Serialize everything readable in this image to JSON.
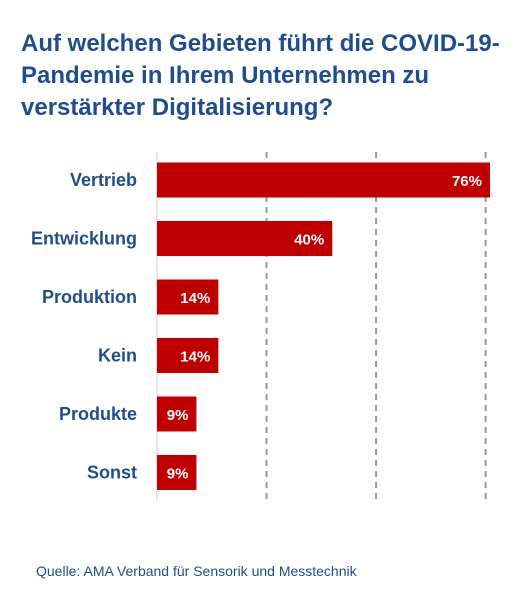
{
  "title": "Auf welchen Gebieten führt die COVID-19-Pandemie in Ihrem Unternehmen zu verstärkter Digitalisierung?",
  "source": "Quelle: AMA Verband für Sensorik und Messtechnik",
  "colors": {
    "bar": "#c00000",
    "text": "#1f4e8c",
    "grid": "#999999"
  },
  "chart_data": {
    "type": "bar",
    "orientation": "horizontal",
    "categories": [
      "Vertrieb",
      "Entwicklung",
      "Produktion",
      "Kein",
      "Produkte",
      "Sonst"
    ],
    "values": [
      76,
      40,
      14,
      14,
      9,
      9
    ],
    "value_labels": [
      "76%",
      "40%",
      "14%",
      "14%",
      "9%",
      "9%"
    ],
    "xlim": [
      0,
      76
    ],
    "gridlines": [
      25,
      50,
      75
    ],
    "grid": true,
    "title": "Auf welchen Gebieten führt die COVID-19-Pandemie in Ihrem Unternehmen zu verstärkter Digitalisierung?"
  }
}
